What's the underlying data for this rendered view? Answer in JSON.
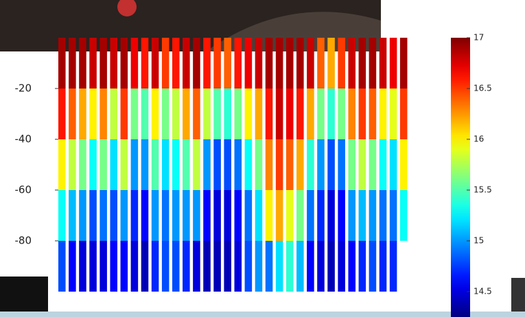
{
  "chart_data": {
    "type": "profiles",
    "depths": [
      -10,
      -30,
      -50,
      -70,
      -90
    ],
    "profiles": [
      [
        16.9,
        16.6,
        16.0,
        15.3,
        14.8
      ],
      [
        16.9,
        16.4,
        15.8,
        15.1,
        14.6
      ],
      [
        16.9,
        16.2,
        15.6,
        15.0,
        14.5
      ],
      [
        16.8,
        16.0,
        15.3,
        14.8,
        14.5
      ],
      [
        16.9,
        16.3,
        15.6,
        14.9,
        14.5
      ],
      [
        16.8,
        15.8,
        15.2,
        14.8,
        14.6
      ],
      [
        16.9,
        16.5,
        15.8,
        15.0,
        14.6
      ],
      [
        16.7,
        15.6,
        15.0,
        14.7,
        14.5
      ],
      [
        16.6,
        15.5,
        15.0,
        14.6,
        14.4
      ],
      [
        16.8,
        16.0,
        15.5,
        15.0,
        14.7
      ],
      [
        16.5,
        15.6,
        15.2,
        14.9,
        14.8
      ],
      [
        16.6,
        15.8,
        15.3,
        15.0,
        14.8
      ],
      [
        16.8,
        16.2,
        15.5,
        15.0,
        14.7
      ],
      [
        16.9,
        16.4,
        15.8,
        15.0,
        14.5
      ],
      [
        16.6,
        15.8,
        15.0,
        14.6,
        14.4
      ],
      [
        16.5,
        15.5,
        14.8,
        14.5,
        14.4
      ],
      [
        16.4,
        15.4,
        14.8,
        14.5,
        14.4
      ],
      [
        16.6,
        15.6,
        14.9,
        14.6,
        14.5
      ],
      [
        16.7,
        16.0,
        15.3,
        14.9,
        14.8
      ],
      [
        16.8,
        16.2,
        15.6,
        15.2,
        15.0
      ],
      [
        16.9,
        16.6,
        16.3,
        16.0,
        14.9
      ],
      [
        16.9,
        16.8,
        16.5,
        16.2,
        15.2
      ],
      [
        16.9,
        16.7,
        16.4,
        15.9,
        15.4
      ],
      [
        16.9,
        16.6,
        16.2,
        15.6,
        15.1
      ],
      [
        16.8,
        16.2,
        15.4,
        14.9,
        14.6
      ],
      [
        16.4,
        15.6,
        15.0,
        14.7,
        14.5
      ],
      [
        16.2,
        15.4,
        14.8,
        14.5,
        14.4
      ],
      [
        16.5,
        15.6,
        14.9,
        14.6,
        14.5
      ],
      [
        16.8,
        16.3,
        15.6,
        15.0,
        14.6
      ],
      [
        16.9,
        16.5,
        15.8,
        15.1,
        14.7
      ],
      [
        16.9,
        16.4,
        15.6,
        15.0,
        14.8
      ],
      [
        16.8,
        16.0,
        15.3,
        14.9,
        14.7
      ],
      [
        16.7,
        15.9,
        15.2,
        14.9,
        14.7
      ],
      [
        16.9,
        16.5,
        16.0,
        15.3,
        null
      ]
    ],
    "ylim": [
      -110,
      0
    ],
    "yticks": [
      -20,
      -40,
      -60,
      -80
    ],
    "clim": [
      14.25,
      17
    ],
    "cticks": [
      17,
      16.5,
      16,
      15.5,
      15,
      14.5
    ],
    "colormap": "jet"
  }
}
